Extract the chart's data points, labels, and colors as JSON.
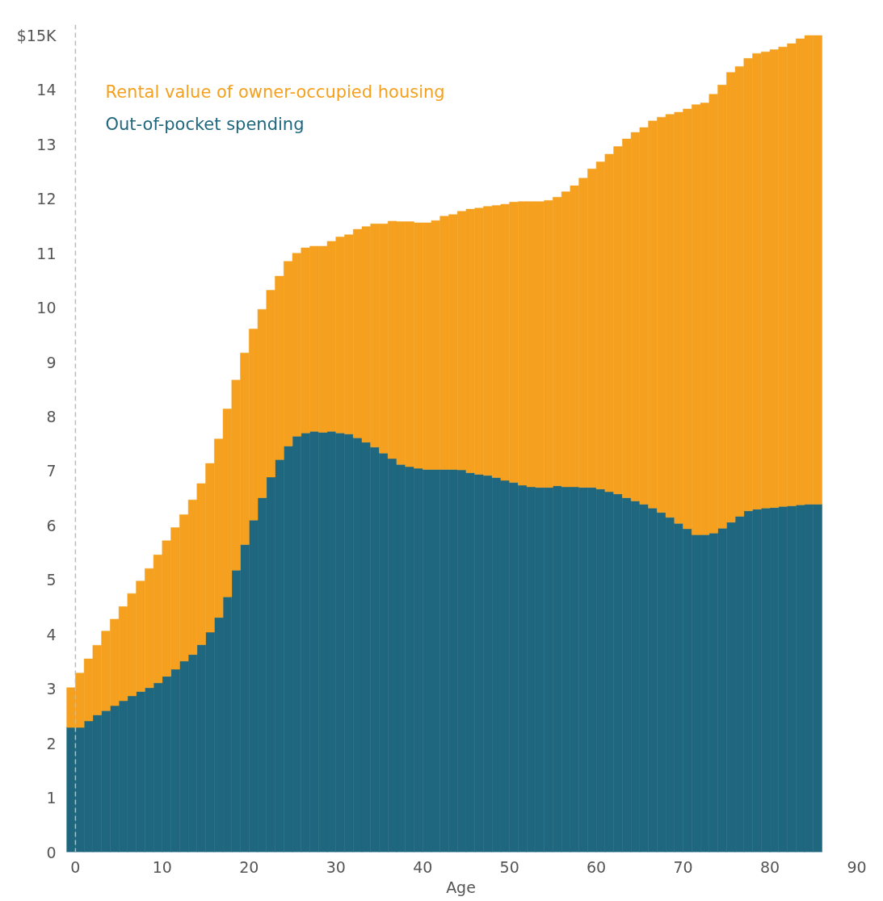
{
  "chart_data": {
    "type": "bar",
    "stacked": true,
    "xlabel": "Age",
    "x": [
      -0.5,
      0.5,
      1.5,
      2.5,
      3.5,
      4.5,
      5.5,
      6.5,
      7.5,
      8.5,
      9.5,
      10.5,
      11.5,
      12.5,
      13.5,
      14.5,
      15.5,
      16.5,
      17.5,
      18.5,
      19.5,
      20.5,
      21.5,
      22.5,
      23.5,
      24.5,
      25.5,
      26.5,
      27.5,
      28.5,
      29.5,
      30.5,
      31.5,
      32.5,
      33.5,
      34.5,
      35.5,
      36.5,
      37.5,
      38.5,
      39.5,
      40.5,
      41.5,
      42.5,
      43.5,
      44.5,
      45.5,
      46.5,
      47.5,
      48.5,
      49.5,
      50.5,
      51.5,
      52.5,
      53.5,
      54.5,
      55.5,
      56.5,
      57.5,
      58.5,
      59.5,
      60.5,
      61.5,
      62.5,
      63.5,
      64.5,
      65.5,
      66.5,
      67.5,
      68.5,
      69.5,
      70.5,
      71.5,
      72.5,
      73.5,
      74.5,
      75.5,
      76.5,
      77.5,
      78.5,
      79.5,
      80.5,
      81.5,
      82.5,
      83.5,
      84.5,
      85.5
    ],
    "series": [
      {
        "name": "Out-of-pocket spending",
        "color": "#1f677f",
        "values": [
          2.29,
          2.29,
          2.41,
          2.52,
          2.6,
          2.69,
          2.78,
          2.87,
          2.95,
          3.02,
          3.11,
          3.23,
          3.36,
          3.51,
          3.63,
          3.81,
          4.04,
          4.31,
          4.69,
          5.18,
          5.65,
          6.1,
          6.51,
          6.89,
          7.21,
          7.46,
          7.64,
          7.7,
          7.73,
          7.71,
          7.73,
          7.7,
          7.68,
          7.61,
          7.53,
          7.44,
          7.33,
          7.23,
          7.12,
          7.08,
          7.05,
          7.03,
          7.03,
          7.03,
          7.03,
          7.02,
          6.97,
          6.94,
          6.92,
          6.88,
          6.83,
          6.79,
          6.74,
          6.71,
          6.7,
          6.7,
          6.73,
          6.71,
          6.71,
          6.7,
          6.7,
          6.67,
          6.62,
          6.58,
          6.51,
          6.45,
          6.39,
          6.32,
          6.24,
          6.15,
          6.04,
          5.94,
          5.83,
          5.83,
          5.86,
          5.95,
          6.06,
          6.17,
          6.27,
          6.3,
          6.32,
          6.33,
          6.35,
          6.36,
          6.38,
          6.39,
          6.39
        ]
      },
      {
        "name": "Rental value of owner-occupied housing",
        "color": "#f5a01e",
        "values": [
          0.73,
          1.0,
          1.14,
          1.28,
          1.46,
          1.59,
          1.73,
          1.88,
          2.03,
          2.19,
          2.35,
          2.49,
          2.6,
          2.69,
          2.84,
          2.96,
          3.1,
          3.28,
          3.45,
          3.49,
          3.52,
          3.51,
          3.46,
          3.43,
          3.37,
          3.39,
          3.36,
          3.4,
          3.4,
          3.42,
          3.49,
          3.6,
          3.66,
          3.83,
          3.96,
          4.1,
          4.21,
          4.36,
          4.46,
          4.5,
          4.51,
          4.53,
          4.57,
          4.65,
          4.68,
          4.75,
          4.84,
          4.89,
          4.94,
          5.0,
          5.07,
          5.15,
          5.21,
          5.24,
          5.25,
          5.27,
          5.3,
          5.42,
          5.53,
          5.68,
          5.85,
          6.01,
          6.2,
          6.38,
          6.59,
          6.77,
          6.92,
          7.11,
          7.26,
          7.4,
          7.55,
          7.71,
          7.9,
          7.93,
          8.06,
          8.14,
          8.26,
          8.26,
          8.31,
          8.37,
          8.38,
          8.41,
          8.44,
          8.49,
          8.56,
          8.61,
          8.61
        ]
      }
    ],
    "xlim": [
      -1.2,
      90
    ],
    "xticks": [
      0,
      10,
      20,
      30,
      40,
      50,
      60,
      70,
      80,
      90
    ],
    "ylim": [
      0,
      15.2
    ],
    "yticks": [
      0,
      1,
      2,
      3,
      4,
      5,
      6,
      7,
      8,
      9,
      10,
      11,
      12,
      13,
      14,
      {
        "value": 15,
        "label": "$15K"
      }
    ],
    "ref_lines": [
      {
        "axis": "x",
        "value": 0,
        "color": "#bbbbbb",
        "line_style": "dashed"
      }
    ],
    "grid": false,
    "legend": "top left"
  }
}
